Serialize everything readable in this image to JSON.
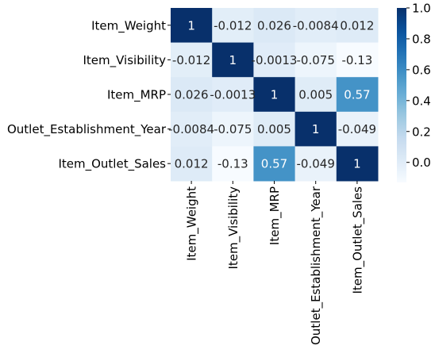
{
  "chart_data": {
    "type": "heatmap",
    "title": "",
    "xlabel": "",
    "ylabel": "",
    "labels": [
      "Item_Weight",
      "Item_Visibility",
      "Item_MRP",
      "Outlet_Establishment_Year",
      "Item_Outlet_Sales"
    ],
    "values": [
      [
        1,
        -0.012,
        0.026,
        -0.0084,
        0.012
      ],
      [
        -0.012,
        1,
        -0.0013,
        -0.075,
        -0.13
      ],
      [
        0.026,
        -0.0013,
        1,
        0.005,
        0.57
      ],
      [
        -0.0084,
        -0.075,
        0.005,
        1,
        -0.049
      ],
      [
        0.012,
        -0.13,
        0.57,
        -0.049,
        1
      ]
    ],
    "cell_labels": [
      [
        "1",
        "-0.012",
        "0.026",
        "-0.0084",
        "0.012"
      ],
      [
        "-0.012",
        "1",
        "-0.0013",
        "-0.075",
        "-0.13"
      ],
      [
        "0.026",
        "-0.0013",
        "1",
        "0.005",
        "0.57"
      ],
      [
        "-0.0084",
        "-0.075",
        "0.005",
        "1",
        "-0.049"
      ],
      [
        "0.012",
        "-0.13",
        "0.57",
        "-0.049",
        "1"
      ]
    ],
    "colormap": "Blues",
    "colorbar": {
      "range": [
        -0.13,
        1.0
      ],
      "ticks": [
        -0.0,
        0.2,
        0.4,
        0.6,
        0.8,
        1.0
      ],
      "tick_labels": [
        "0.0",
        "0.2",
        "0.4",
        "0.6",
        "0.8",
        "1.0"
      ]
    },
    "annot_dark_color": "#262626",
    "annot_light_color": "#ffffff",
    "annot_threshold": 0.44
  }
}
